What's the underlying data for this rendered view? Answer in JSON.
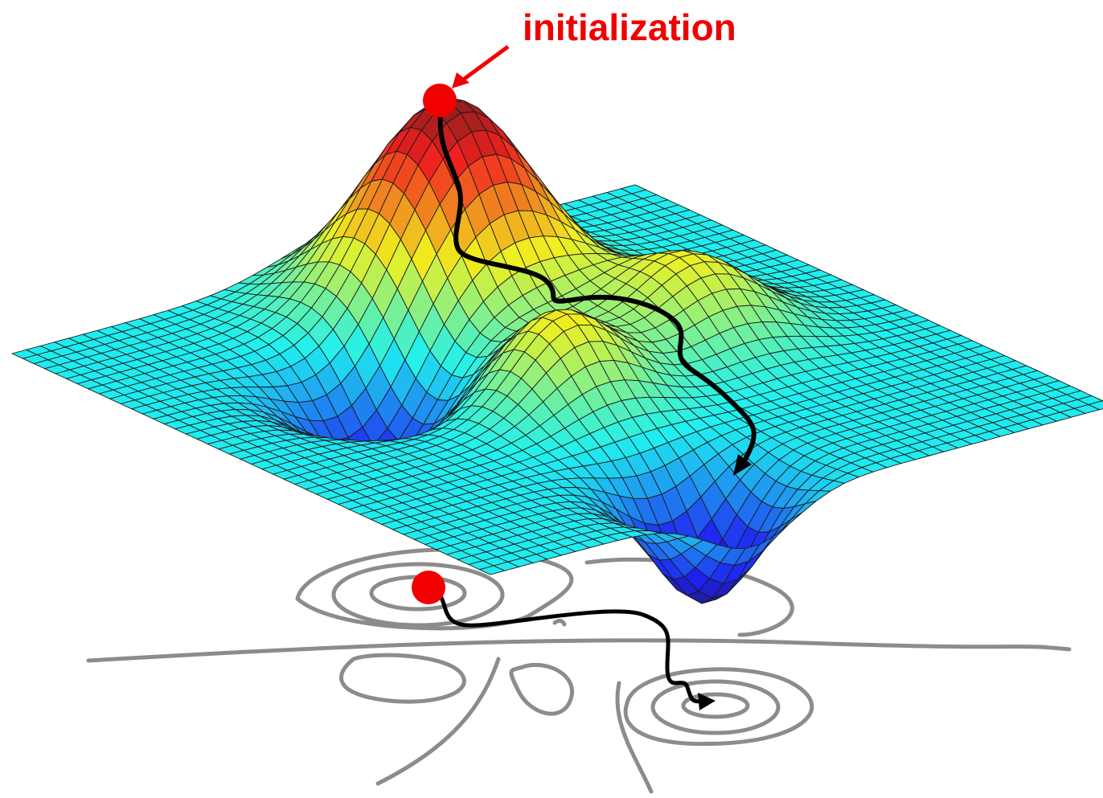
{
  "annotation": {
    "label": "initialization"
  }
}
